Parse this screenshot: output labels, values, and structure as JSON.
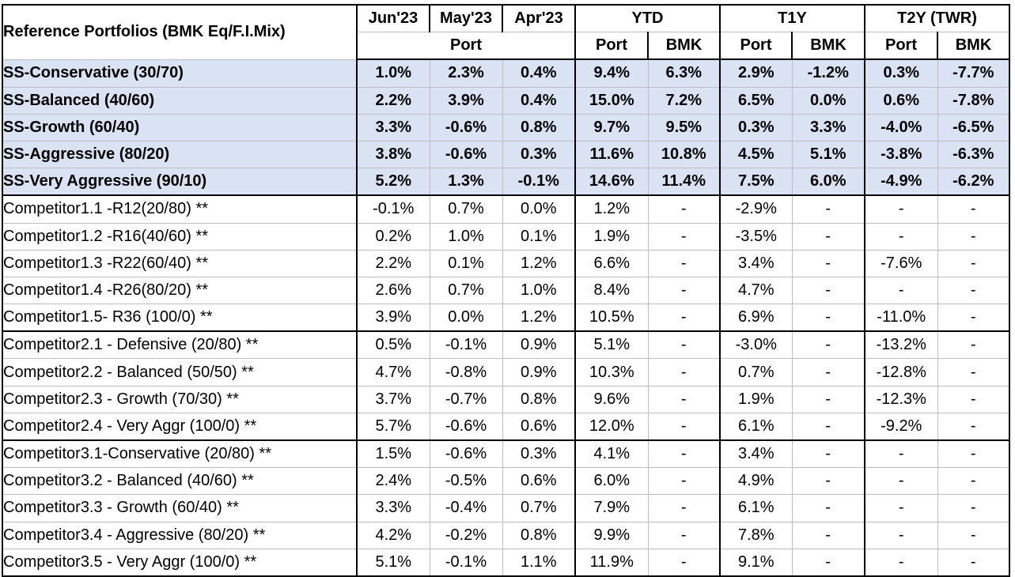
{
  "header": {
    "title": "Reference Portfolios (BMK Eq/F.I.Mix)",
    "periods": [
      "Jun'23",
      "May'23",
      "Apr'23"
    ],
    "groups": [
      "YTD",
      "T1Y",
      "T2Y (TWR)"
    ],
    "port": "Port",
    "bmk": "BMK"
  },
  "colors": {
    "highlight_fill": "#dae3f3",
    "grid": "#bdbdbd",
    "border": "#000000"
  },
  "rows": [
    {
      "name": "SS-Conservative (30/70)",
      "ss": true,
      "values": [
        "1.0%",
        "2.3%",
        "0.4%",
        "9.4%",
        "6.3%",
        "2.9%",
        "-1.2%",
        "0.3%",
        "-7.7%"
      ]
    },
    {
      "name": "SS-Balanced (40/60)",
      "ss": true,
      "values": [
        "2.2%",
        "3.9%",
        "0.4%",
        "15.0%",
        "7.2%",
        "6.5%",
        "0.0%",
        "0.6%",
        "-7.8%"
      ]
    },
    {
      "name": "SS-Growth (60/40)",
      "ss": true,
      "values": [
        "3.3%",
        "-0.6%",
        "0.8%",
        "9.7%",
        "9.5%",
        "0.3%",
        "3.3%",
        "-4.0%",
        "-6.5%"
      ]
    },
    {
      "name": "SS-Aggressive (80/20)",
      "ss": true,
      "values": [
        "3.8%",
        "-0.6%",
        "0.3%",
        "11.6%",
        "10.8%",
        "4.5%",
        "5.1%",
        "-3.8%",
        "-6.3%"
      ]
    },
    {
      "name": "SS-Very Aggressive (90/10)",
      "ss": true,
      "values": [
        "5.2%",
        "1.3%",
        "-0.1%",
        "14.6%",
        "11.4%",
        "7.5%",
        "6.0%",
        "-4.9%",
        "-6.2%"
      ]
    },
    {
      "name": "Competitor1.1 -R12(20/80) **",
      "values": [
        "-0.1%",
        "0.7%",
        "0.0%",
        "1.2%",
        "-",
        "-2.9%",
        "-",
        "-",
        "-"
      ]
    },
    {
      "name": "Competitor1.2 -R16(40/60) **",
      "values": [
        "0.2%",
        "1.0%",
        "0.1%",
        "1.9%",
        "-",
        "-3.5%",
        "-",
        "-",
        "-"
      ]
    },
    {
      "name": "Competitor1.3 -R22(60/40) **",
      "values": [
        "2.2%",
        "0.1%",
        "1.2%",
        "6.6%",
        "-",
        "3.4%",
        "-",
        "-7.6%",
        "-"
      ]
    },
    {
      "name": "Competitor1.4 -R26(80/20) **",
      "values": [
        "2.6%",
        "0.7%",
        "1.0%",
        "8.4%",
        "-",
        "4.7%",
        "-",
        "-",
        "-"
      ]
    },
    {
      "name": "Competitor1.5- R36 (100/0) **",
      "values": [
        "3.9%",
        "0.0%",
        "1.2%",
        "10.5%",
        "-",
        "6.9%",
        "-",
        "-11.0%",
        "-"
      ]
    },
    {
      "name": "Competitor2.1  - Defensive  (20/80) **",
      "values": [
        "0.5%",
        "-0.1%",
        "0.9%",
        "5.1%",
        "-",
        "-3.0%",
        "-",
        "-13.2%",
        "-"
      ]
    },
    {
      "name": "Competitor2.2  - Balanced (50/50) **",
      "values": [
        "4.7%",
        "-0.8%",
        "0.9%",
        "10.3%",
        "-",
        "0.7%",
        "-",
        "-12.8%",
        "-"
      ]
    },
    {
      "name": "Competitor2.3  - Growth  (70/30) **",
      "values": [
        "3.7%",
        "-0.7%",
        "0.8%",
        "9.6%",
        "-",
        "1.9%",
        "-",
        "-12.3%",
        "-"
      ]
    },
    {
      "name": "Competitor2.4  - Very Aggr  (100/0) **",
      "values": [
        "5.7%",
        "-0.6%",
        "0.6%",
        "12.0%",
        "-",
        "6.1%",
        "-",
        "-9.2%",
        "-"
      ]
    },
    {
      "name": "Competitor3.1-Conservative (20/80) **",
      "values": [
        "1.5%",
        "-0.6%",
        "0.3%",
        "4.1%",
        "-",
        "3.4%",
        "-",
        "-",
        "-"
      ]
    },
    {
      "name": "Competitor3.2 - Balanced  (40/60) **",
      "values": [
        "2.4%",
        "-0.5%",
        "0.6%",
        "6.0%",
        "-",
        "4.9%",
        "-",
        "-",
        "-"
      ]
    },
    {
      "name": "Competitor3.3 - Growth  (60/40) **",
      "values": [
        "3.3%",
        "-0.4%",
        "0.7%",
        "7.9%",
        "-",
        "6.1%",
        "-",
        "-",
        "-"
      ]
    },
    {
      "name": "Competitor3.4 - Aggressive  (80/20) **",
      "values": [
        "4.2%",
        "-0.2%",
        "0.8%",
        "9.9%",
        "-",
        "7.8%",
        "-",
        "-",
        "-"
      ]
    },
    {
      "name": "Competitor3.5  - Very Aggr (100/0) **",
      "values": [
        "5.1%",
        "-0.1%",
        "1.1%",
        "11.9%",
        "-",
        "9.1%",
        "-",
        "-",
        "-"
      ]
    }
  ]
}
